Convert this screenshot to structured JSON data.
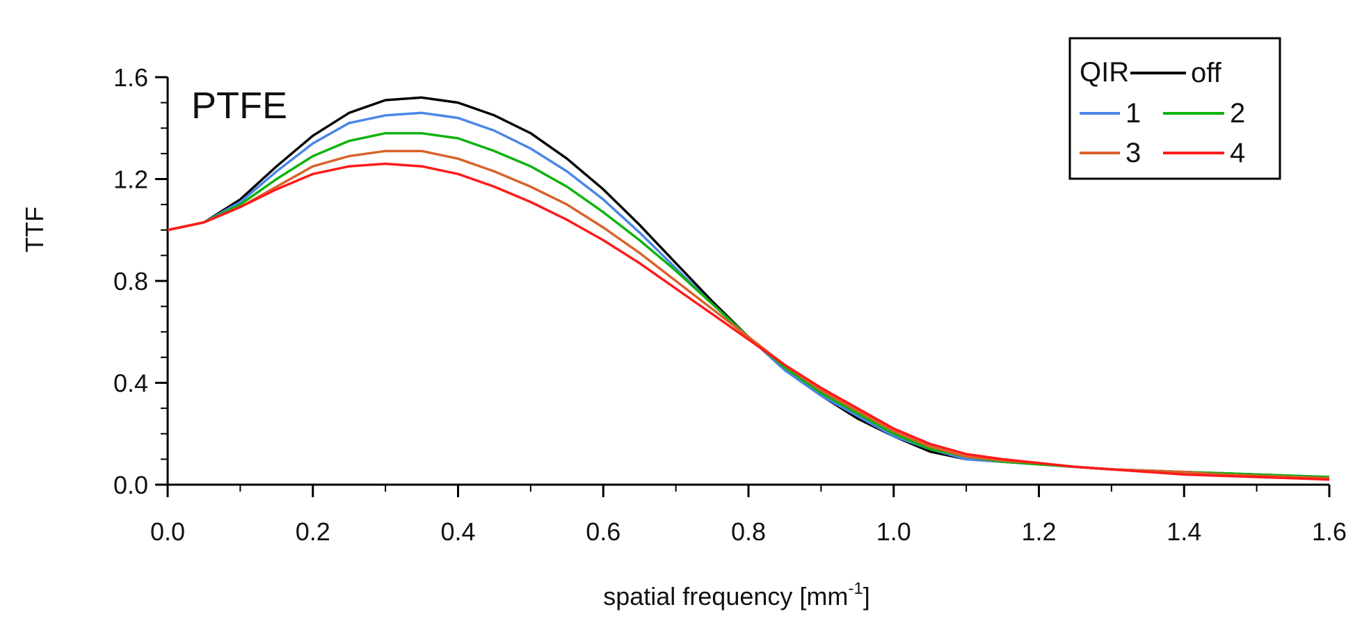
{
  "chart_data": {
    "type": "line",
    "title": "PTFE",
    "xlabel": "spatial frequency [mm",
    "xlabel_sup": "-1",
    "xlabel_suffix": "]",
    "ylabel": "TTF",
    "xlim": [
      0,
      1.6
    ],
    "ylim": [
      0,
      1.6
    ],
    "x_ticks": [
      "0.0",
      "0.2",
      "0.4",
      "0.6",
      "0.8",
      "1.0",
      "1.2",
      "1.4",
      "1.6"
    ],
    "y_ticks": [
      "0.0",
      "0.4",
      "0.8",
      "1.2",
      "1.6"
    ],
    "grid": false,
    "legend": {
      "placement": "top-right",
      "title": "QIR"
    },
    "x": [
      0.0,
      0.05,
      0.1,
      0.15,
      0.2,
      0.25,
      0.3,
      0.35,
      0.4,
      0.45,
      0.5,
      0.55,
      0.6,
      0.65,
      0.7,
      0.75,
      0.8,
      0.85,
      0.9,
      0.95,
      1.0,
      1.05,
      1.1,
      1.15,
      1.2,
      1.25,
      1.3,
      1.35,
      1.4,
      1.45,
      1.5,
      1.55,
      1.6
    ],
    "series": [
      {
        "name": "off",
        "color": "#000000",
        "values": [
          1.0,
          1.03,
          1.12,
          1.25,
          1.37,
          1.46,
          1.51,
          1.52,
          1.5,
          1.45,
          1.38,
          1.28,
          1.16,
          1.02,
          0.87,
          0.72,
          0.58,
          0.45,
          0.35,
          0.26,
          0.19,
          0.13,
          0.1,
          0.09,
          0.08,
          0.07,
          0.06,
          0.055,
          0.05,
          0.045,
          0.04,
          0.035,
          0.03
        ]
      },
      {
        "name": "1",
        "color": "#4a86e8",
        "values": [
          1.0,
          1.03,
          1.11,
          1.23,
          1.34,
          1.42,
          1.45,
          1.46,
          1.44,
          1.39,
          1.32,
          1.23,
          1.12,
          0.99,
          0.85,
          0.71,
          0.58,
          0.45,
          0.35,
          0.27,
          0.19,
          0.14,
          0.1,
          0.09,
          0.08,
          0.07,
          0.06,
          0.055,
          0.05,
          0.045,
          0.04,
          0.035,
          0.03
        ]
      },
      {
        "name": "2",
        "color": "#0fb30f",
        "values": [
          1.0,
          1.03,
          1.1,
          1.2,
          1.29,
          1.35,
          1.38,
          1.38,
          1.36,
          1.31,
          1.25,
          1.17,
          1.07,
          0.96,
          0.84,
          0.71,
          0.58,
          0.46,
          0.36,
          0.28,
          0.2,
          0.14,
          0.11,
          0.09,
          0.08,
          0.07,
          0.06,
          0.055,
          0.05,
          0.045,
          0.04,
          0.035,
          0.03
        ]
      },
      {
        "name": "3",
        "color": "#d9622b",
        "values": [
          1.0,
          1.03,
          1.09,
          1.17,
          1.25,
          1.29,
          1.31,
          1.31,
          1.28,
          1.23,
          1.17,
          1.1,
          1.01,
          0.91,
          0.8,
          0.69,
          0.58,
          0.47,
          0.37,
          0.29,
          0.21,
          0.15,
          0.11,
          0.095,
          0.085,
          0.07,
          0.06,
          0.055,
          0.05,
          0.04,
          0.035,
          0.03,
          0.025
        ]
      },
      {
        "name": "4",
        "color": "#ff1a1a",
        "values": [
          1.0,
          1.03,
          1.09,
          1.16,
          1.22,
          1.25,
          1.26,
          1.25,
          1.22,
          1.17,
          1.11,
          1.04,
          0.96,
          0.87,
          0.77,
          0.67,
          0.57,
          0.47,
          0.38,
          0.3,
          0.22,
          0.16,
          0.12,
          0.1,
          0.085,
          0.07,
          0.06,
          0.05,
          0.04,
          0.035,
          0.03,
          0.025,
          0.02
        ]
      }
    ]
  }
}
